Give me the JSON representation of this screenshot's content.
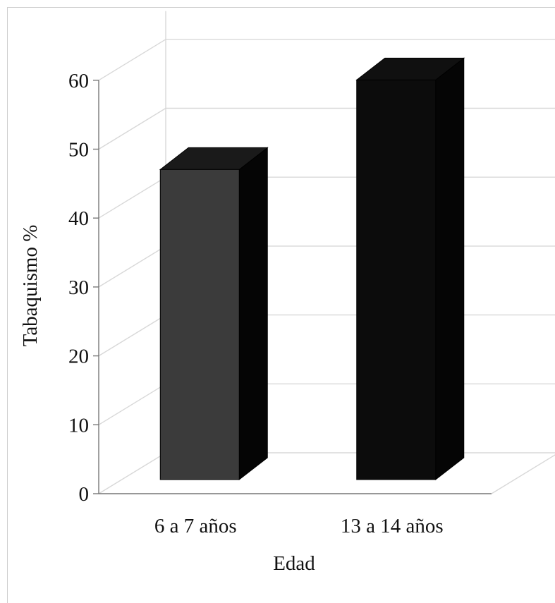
{
  "chart_data": {
    "type": "bar",
    "title": "",
    "xlabel": "Edad",
    "ylabel": "Tabaquismo %",
    "categories": [
      "6 a 7 años",
      "13 a 14 años"
    ],
    "values": [
      45,
      58
    ],
    "ylim": [
      0,
      60
    ],
    "yticks": [
      0,
      10,
      20,
      30,
      40,
      50,
      60
    ],
    "grid": true,
    "legend": "none",
    "three_d": true,
    "colors": {
      "bar_front": [
        "#3b3b3b",
        "#0c0c0c"
      ],
      "bar_side": [
        "#050505",
        "#050505"
      ],
      "bar_top": [
        "#1a1a1a",
        "#101010"
      ],
      "grid": "#d8d8d8",
      "axis": "#777777",
      "background": "#ffffff"
    }
  }
}
